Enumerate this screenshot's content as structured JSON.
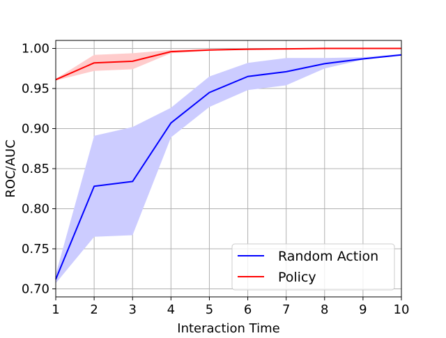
{
  "chart_data": {
    "type": "line",
    "title": "",
    "xlabel": "Interaction Time",
    "ylabel": "ROC/AUC",
    "xlim": [
      1,
      10
    ],
    "ylim": [
      0.69,
      1.01
    ],
    "x": [
      1,
      2,
      3,
      4,
      5,
      6,
      7,
      8,
      9,
      10
    ],
    "x_ticks": [
      "1",
      "2",
      "3",
      "4",
      "5",
      "6",
      "7",
      "8",
      "9",
      "10"
    ],
    "y_ticks": [
      "0.70",
      "0.75",
      "0.80",
      "0.85",
      "0.90",
      "0.95",
      "1.00"
    ],
    "grid": true,
    "legend_position": "lower-right",
    "series": [
      {
        "name": "Random Action",
        "color": "#0000ff",
        "band_color": "#ccccff",
        "values": [
          0.712,
          0.828,
          0.834,
          0.907,
          0.945,
          0.965,
          0.971,
          0.981,
          0.987,
          0.992
        ],
        "lower": [
          0.707,
          0.765,
          0.767,
          0.889,
          0.927,
          0.948,
          0.954,
          0.975,
          0.986,
          0.991
        ],
        "upper": [
          0.718,
          0.891,
          0.902,
          0.926,
          0.965,
          0.982,
          0.988,
          0.988,
          0.989,
          0.993
        ]
      },
      {
        "name": "Policy",
        "color": "#ff0000",
        "band_color": "#ffcccc",
        "values": [
          0.961,
          0.982,
          0.984,
          0.996,
          0.998,
          0.999,
          0.9995,
          1.0,
          1.0,
          1.0
        ],
        "lower": [
          0.96,
          0.972,
          0.974,
          0.994,
          0.997,
          0.999,
          0.9995,
          1.0,
          1.0,
          1.0
        ],
        "upper": [
          0.962,
          0.992,
          0.994,
          0.998,
          0.999,
          1.0,
          1.0,
          1.0,
          1.0,
          1.0
        ]
      }
    ]
  }
}
